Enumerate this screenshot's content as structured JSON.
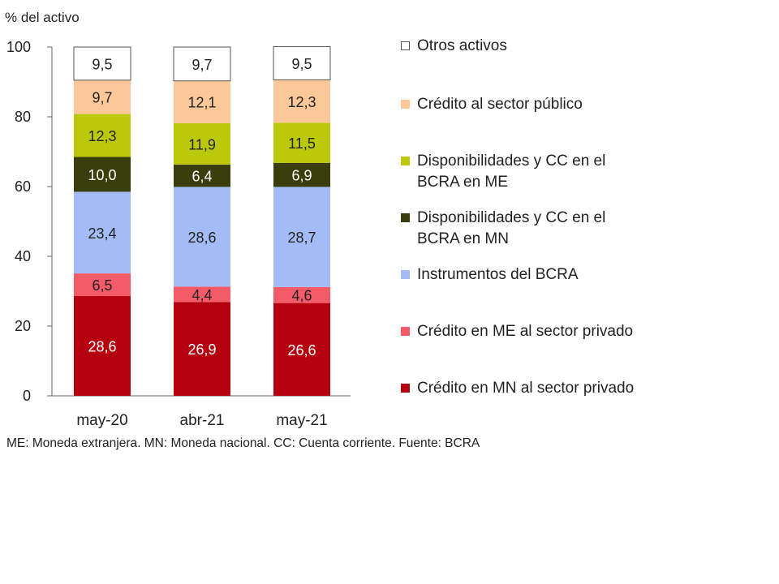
{
  "chart_data": {
    "type": "bar",
    "stacked": true,
    "ylabel": "% del activo",
    "ylim": [
      0,
      100
    ],
    "yticks": [
      0,
      20,
      40,
      60,
      80,
      100
    ],
    "categories": [
      "may-20",
      "abr-21",
      "may-21"
    ],
    "series": [
      {
        "name": "Crédito en MN al sector privado",
        "color": "#b5000f",
        "label_color": "#ffffff",
        "values": [
          28.6,
          26.9,
          26.6
        ],
        "labels": [
          "28,6",
          "26,9",
          "26,6"
        ]
      },
      {
        "name": "Crédito en ME al sector privado",
        "color": "#f45b69",
        "label_color": "#222222",
        "values": [
          6.5,
          4.4,
          4.6
        ],
        "labels": [
          "6,5",
          "4,4",
          "4,6"
        ]
      },
      {
        "name": "Instrumentos del BCRA",
        "color": "#a4bcf5",
        "label_color": "#222222",
        "values": [
          23.4,
          28.6,
          28.7
        ],
        "labels": [
          "23,4",
          "28,6",
          "28,7"
        ]
      },
      {
        "name": "Disponibilidades y CC en el BCRA en MN",
        "color": "#3a3e0c",
        "label_color": "#ffffff",
        "values": [
          10.0,
          6.4,
          6.9
        ],
        "labels": [
          "10,0",
          "6,4",
          "6,9"
        ]
      },
      {
        "name": "Disponibilidades y CC en el BCRA en ME",
        "color": "#bcc90a",
        "label_color": "#222222",
        "values": [
          12.3,
          11.9,
          11.5
        ],
        "labels": [
          "12,3",
          "11,9",
          "11,5"
        ]
      },
      {
        "name": "Crédito al sector público",
        "color": "#fcc899",
        "label_color": "#222222",
        "values": [
          9.7,
          12.1,
          12.3
        ],
        "labels": [
          "9,7",
          "12,1",
          "12,3"
        ]
      },
      {
        "name": "Otros activos",
        "color": "#ffffff",
        "label_color": "#222222",
        "values": [
          9.5,
          9.7,
          9.5
        ],
        "labels": [
          "9,5",
          "9,7",
          "9,5"
        ]
      }
    ],
    "legend_position": "right",
    "legend_order": [
      "Otros activos",
      "Crédito al sector público",
      "Disponibilidades y CC en el BCRA en ME",
      "Disponibilidades y CC en el BCRA en MN",
      "Instrumentos del BCRA",
      "Crédito en ME al sector privado",
      "Crédito en MN al sector privado"
    ]
  },
  "footnote": "ME: Moneda extranjera. MN: Moneda nacional. CC: Cuenta corriente. Fuente: BCRA"
}
